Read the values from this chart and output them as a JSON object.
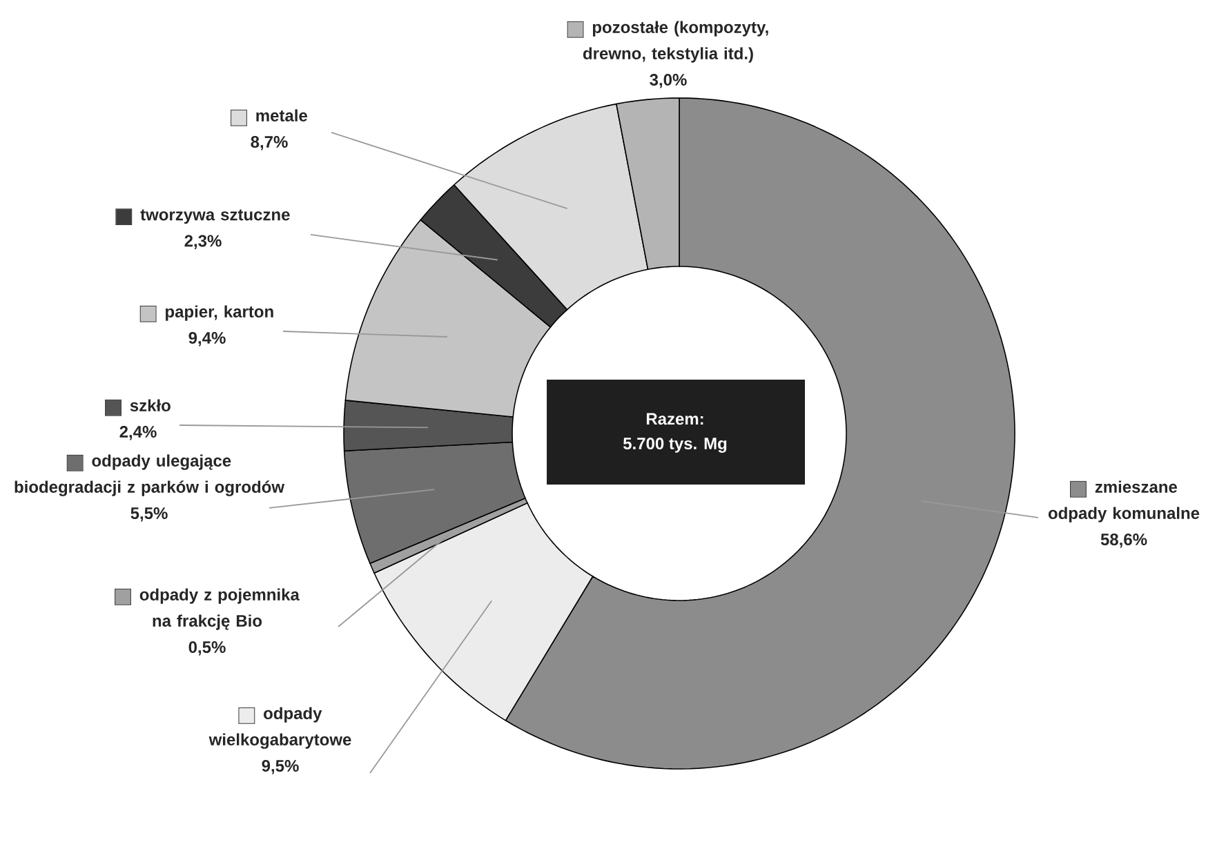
{
  "chart_data": {
    "type": "donut",
    "categories": [
      "zmieszane odpady komunalne",
      "odpady wielkogabarytowe",
      "odpady z pojemnika na frakcję Bio",
      "odpady ulegające biodegradacji z parków i ogrodów",
      "szkło",
      "papier, karton",
      "tworzywa sztuczne",
      "metale",
      "pozostałe (kompozyty, drewno, tekstylia itd.)"
    ],
    "values": [
      58.6,
      9.5,
      0.5,
      5.5,
      2.4,
      9.4,
      2.3,
      8.7,
      3.0
    ],
    "value_labels": [
      "58,6%",
      "9,5%",
      "0,5%",
      "5,5%",
      "2,4%",
      "9,4%",
      "2,3%",
      "8,7%",
      "3,0%"
    ],
    "colors": [
      "#8c8c8c",
      "#ececec",
      "#a0a0a0",
      "#6e6e6e",
      "#555555",
      "#c4c4c4",
      "#3c3c3c",
      "#dcdcdc",
      "#b4b4b4"
    ],
    "legend": "left",
    "annotations": [
      "Razem:",
      "5.700 tys. Mg"
    ]
  }
}
